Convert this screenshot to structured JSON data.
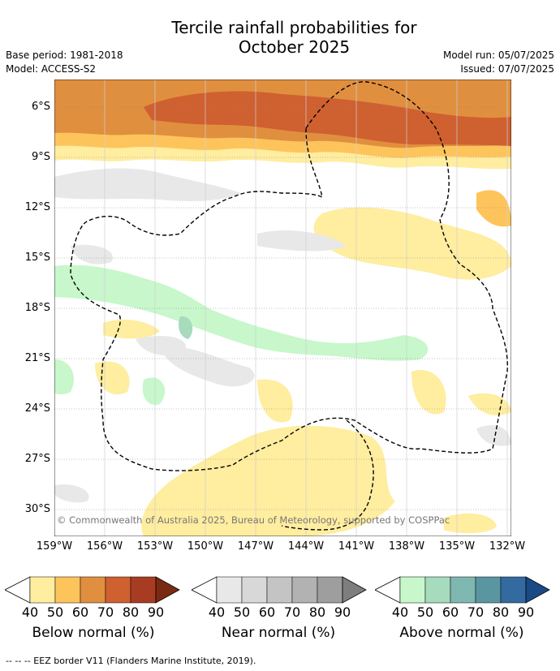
{
  "title_line1": "Tercile rainfall probabilities for",
  "title_line2": "October 2025",
  "meta_left": [
    "Base period: 1981-2018",
    "Model: ACCESS-S2"
  ],
  "meta_right": [
    "Model run: 05/07/2025",
    "Issued: 07/07/2025"
  ],
  "lat_labels": [
    "6°S",
    "9°S",
    "12°S",
    "15°S",
    "18°S",
    "21°S",
    "24°S",
    "27°S",
    "30°S"
  ],
  "lon_labels": [
    "159°W",
    "156°W",
    "153°W",
    "150°W",
    "147°W",
    "144°W",
    "141°W",
    "138°W",
    "135°W",
    "132°W"
  ],
  "copyright": "© Commonwealth of Australia 2025, Bureau of Meteorology, supported by COSPPac",
  "colorbars": [
    {
      "label": "Below normal (%)",
      "ticks": [
        "40",
        "50",
        "60",
        "70",
        "80",
        "90"
      ],
      "colors": [
        "#ffeda0",
        "#fec45c",
        "#e08f3f",
        "#cf6030",
        "#a83c22",
        "#7a2a12"
      ]
    },
    {
      "label": "Near normal (%)",
      "ticks": [
        "40",
        "50",
        "60",
        "70",
        "80",
        "90"
      ],
      "colors": [
        "#e8e8e8",
        "#d8d8d8",
        "#c4c4c4",
        "#b2b2b2",
        "#9e9e9e",
        "#7e7e7e"
      ]
    },
    {
      "label": "Above normal (%)",
      "ticks": [
        "40",
        "50",
        "60",
        "70",
        "80",
        "90"
      ],
      "colors": [
        "#c7f7cb",
        "#a6dbbd",
        "#7fb7b1",
        "#5a95a2",
        "#336aa0",
        "#1a4a86"
      ]
    }
  ],
  "footnote": "--  --  -- EEZ border V11 (Flanders Marine Institute, 2019)."
}
